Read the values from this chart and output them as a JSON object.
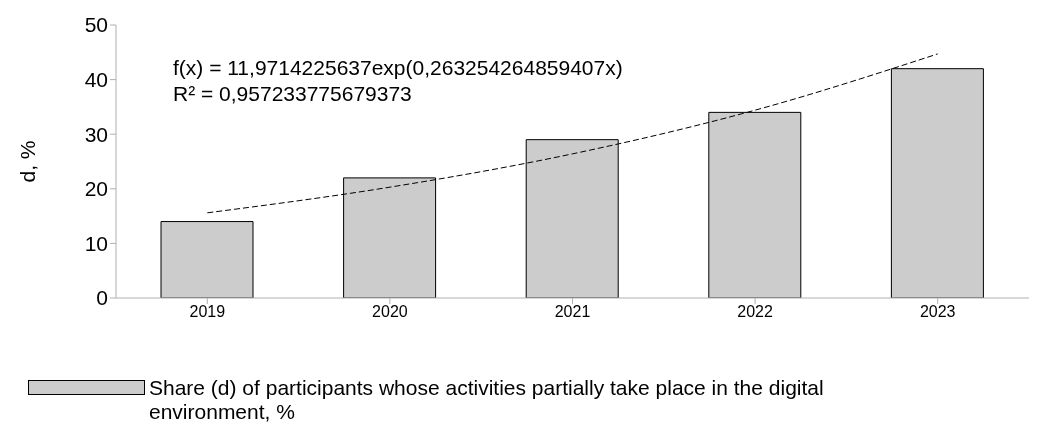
{
  "chart_data": {
    "type": "bar",
    "ylabel": "d, %",
    "categories": [
      "2019",
      "2020",
      "2021",
      "2022",
      "2023"
    ],
    "series": [
      {
        "name": "Share (d) of participants whose activities partially take place in the digital environment, %",
        "color": "#cccccc",
        "values": [
          14,
          22,
          29,
          34,
          42
        ]
      },
      {
        "type": "line",
        "color": "#000000",
        "line_style": "dashed",
        "values": [
          15.6,
          20.3,
          26.4,
          34.4,
          44.7
        ]
      }
    ],
    "ylim": [
      0,
      50
    ],
    "yticks": [
      0,
      10,
      20,
      30,
      40,
      50
    ],
    "legend": "bottom",
    "annotations": [
      "f(x) = 11,9714225637exp(0,263254264859407x)",
      "R² = 0,957233775679373"
    ]
  }
}
